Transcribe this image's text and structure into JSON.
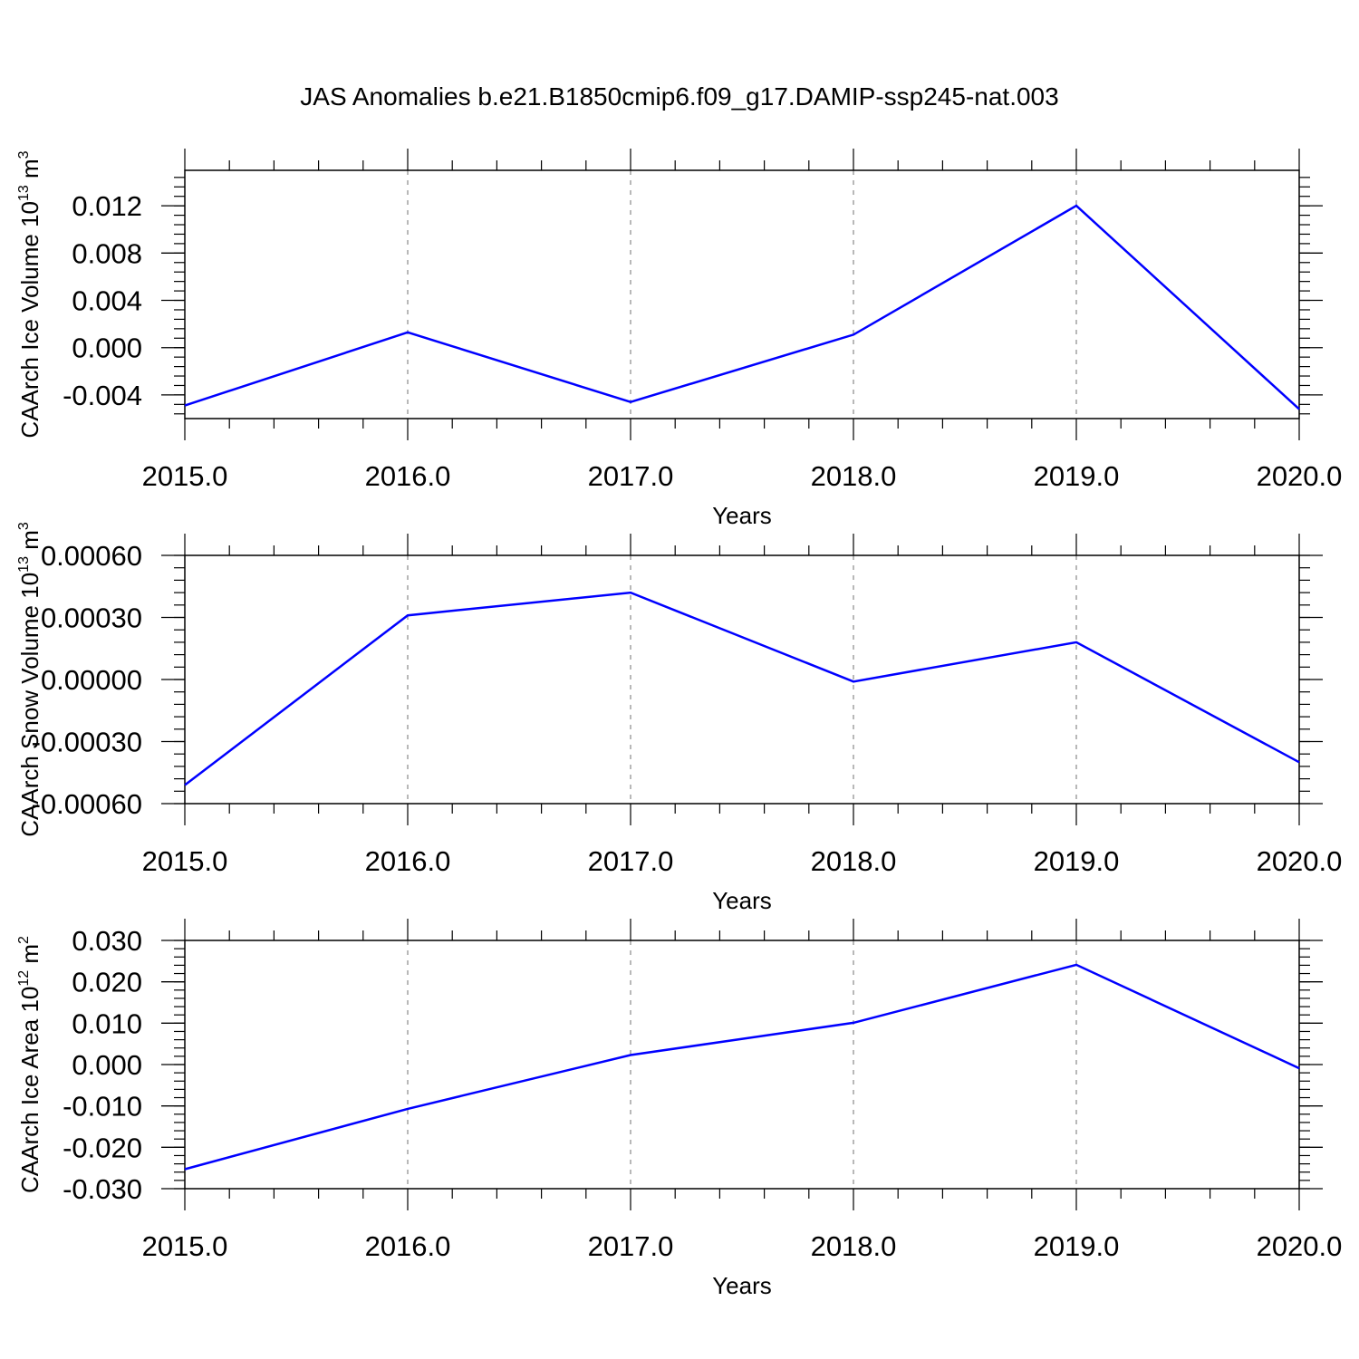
{
  "figure_title": "JAS Anomalies b.e21.B1850cmip6.f09_g17.DAMIP-ssp245-nat.003",
  "colors": {
    "line": "#0000ff",
    "axis": "#000000",
    "grid": "#a0a0a0"
  },
  "chart_data": [
    {
      "type": "line",
      "title": "JAS Anomalies b.e21.B1850cmip6.f09_g17.DAMIP-ssp245-nat.003",
      "xlabel": "Years",
      "ylabel": "CAArch Ice Volume 10",
      "ylabel_exp": "13",
      "ylabel_unit": " m",
      "ylabel_unit_exp": "3",
      "x": [
        2015,
        2016,
        2017,
        2018,
        2019,
        2020
      ],
      "xlim": [
        2015,
        2020
      ],
      "x_ticks": [
        "2015.0",
        "2016.0",
        "2017.0",
        "2018.0",
        "2019.0",
        "2020.0"
      ],
      "ylim": [
        -0.006,
        0.015
      ],
      "y_ticks": [
        -0.004,
        0.0,
        0.004,
        0.008,
        0.012
      ],
      "y_tick_labels": [
        "-0.004",
        "0.000",
        "0.004",
        "0.008",
        "0.012"
      ],
      "series": [
        {
          "values": [
            -0.0049,
            0.0013,
            -0.0046,
            0.0011,
            0.012,
            -0.0052
          ]
        }
      ],
      "grid": "x-dashed",
      "legend": "none"
    },
    {
      "type": "line",
      "title": "",
      "xlabel": "Years",
      "ylabel": "CAArch Snow Volume 10",
      "ylabel_exp": "13",
      "ylabel_unit": " m",
      "ylabel_unit_exp": "3",
      "x": [
        2015,
        2016,
        2017,
        2018,
        2019,
        2020
      ],
      "xlim": [
        2015,
        2020
      ],
      "x_ticks": [
        "2015.0",
        "2016.0",
        "2017.0",
        "2018.0",
        "2019.0",
        "2020.0"
      ],
      "ylim": [
        -0.0006,
        0.0006
      ],
      "y_ticks": [
        -0.0006,
        -0.0003,
        0.0,
        0.0003,
        0.0006
      ],
      "y_tick_labels": [
        "-0.00060",
        "-0.00030",
        "0.00000",
        "0.00030",
        "0.00060"
      ],
      "series": [
        {
          "values": [
            -0.00051,
            0.00031,
            0.00042,
            -1e-05,
            0.00018,
            -0.0004
          ]
        }
      ],
      "grid": "x-dashed",
      "legend": "none"
    },
    {
      "type": "line",
      "title": "",
      "xlabel": "Years",
      "ylabel": "CAArch Ice Area 10",
      "ylabel_exp": "12",
      "ylabel_unit": " m",
      "ylabel_unit_exp": "2",
      "x": [
        2015,
        2016,
        2017,
        2018,
        2019,
        2020
      ],
      "xlim": [
        2015,
        2020
      ],
      "x_ticks": [
        "2015.0",
        "2016.0",
        "2017.0",
        "2018.0",
        "2019.0",
        "2020.0"
      ],
      "ylim": [
        -0.03,
        0.03
      ],
      "y_ticks": [
        -0.03,
        -0.02,
        -0.01,
        0.0,
        0.01,
        0.02,
        0.03
      ],
      "y_tick_labels": [
        "-0.030",
        "-0.020",
        "-0.010",
        "0.000",
        "0.010",
        "0.020",
        "0.030"
      ],
      "series": [
        {
          "values": [
            -0.0253,
            -0.0107,
            0.0023,
            0.0101,
            0.0241,
            -0.0009
          ]
        }
      ],
      "grid": "x-dashed",
      "legend": "none"
    }
  ]
}
